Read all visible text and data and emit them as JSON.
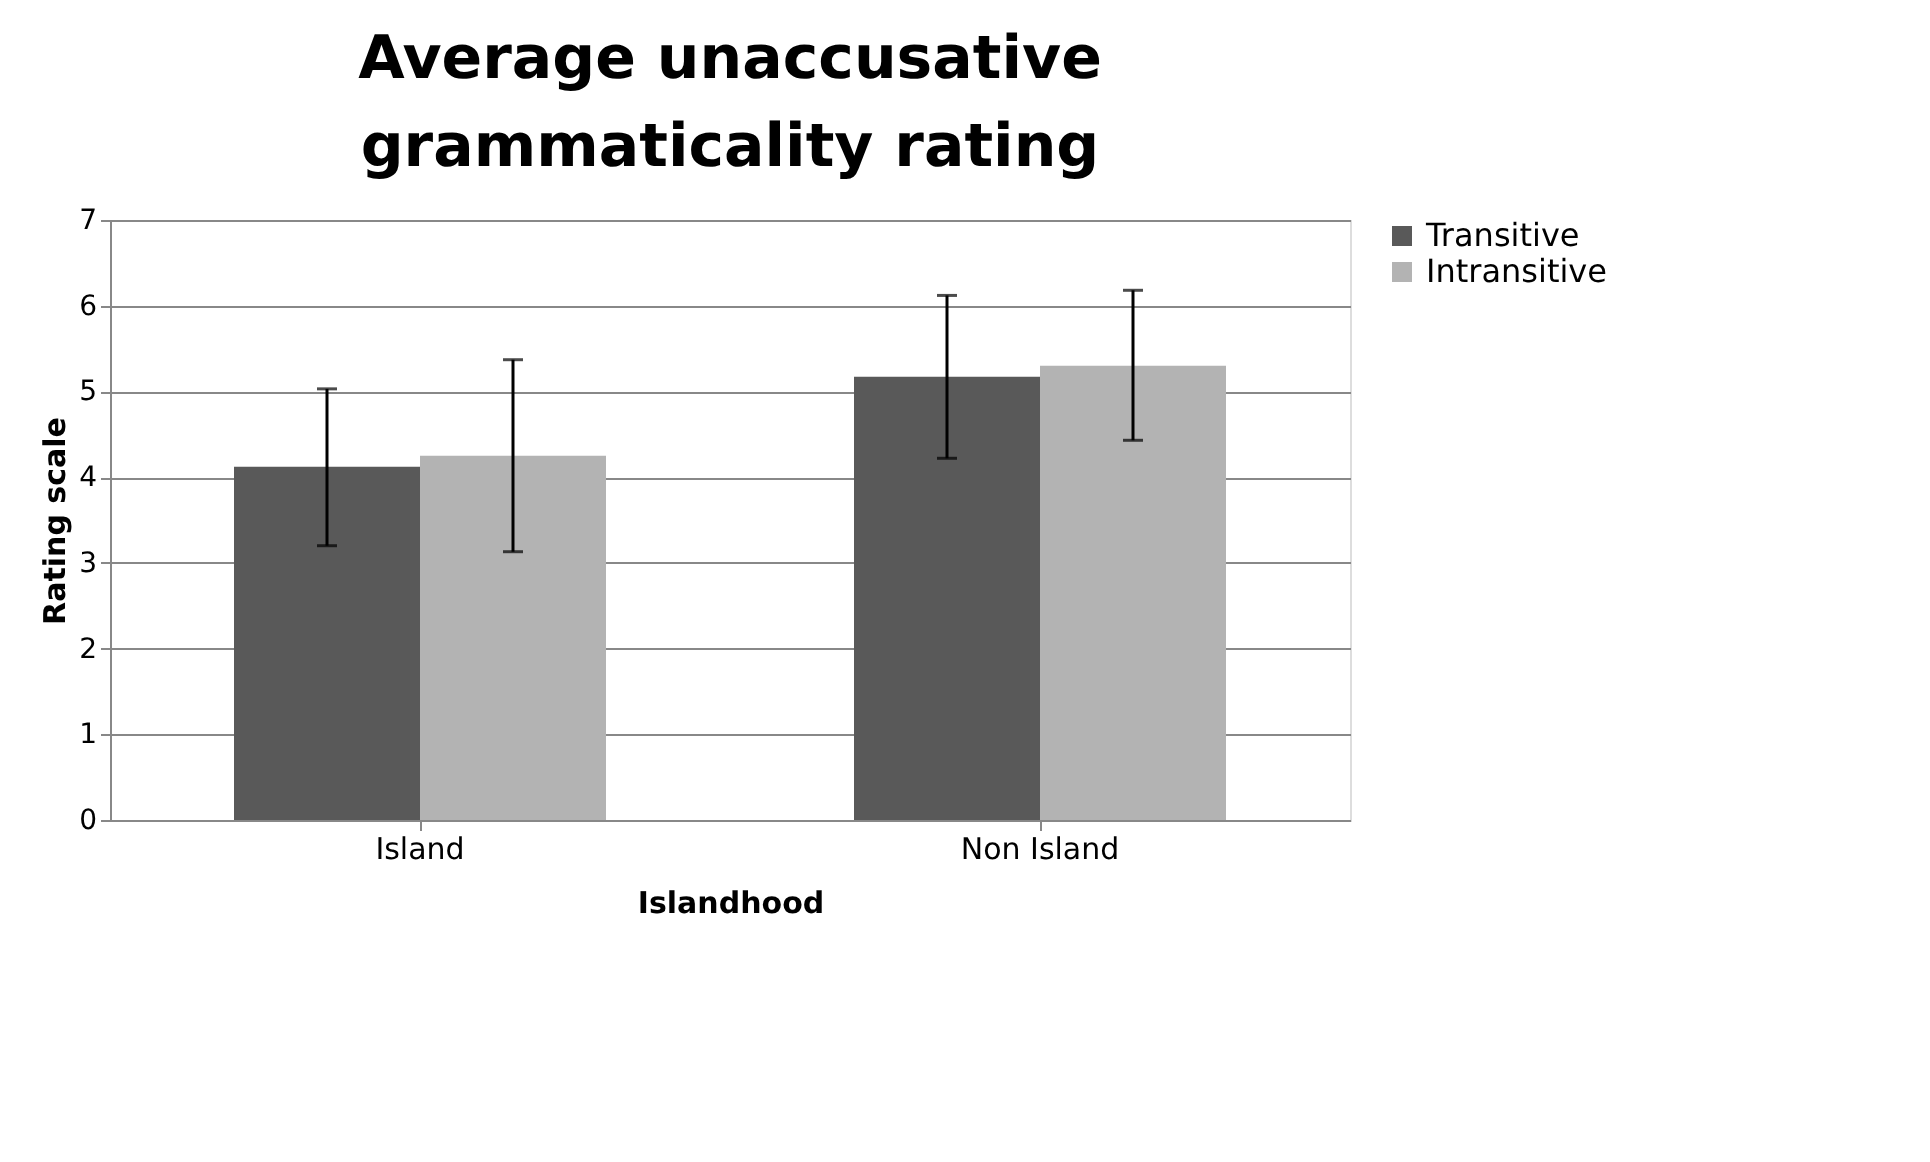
{
  "chart_data": {
    "type": "bar",
    "title": "Average unaccusative grammaticality rating",
    "xlabel": "Islandhood",
    "ylabel": "Rating scale",
    "categories": [
      "Island",
      "Non Island"
    ],
    "series": [
      {
        "name": "Transitive",
        "color": "#595959",
        "values": [
          4.12,
          5.17
        ],
        "errors": [
          [
            3.2,
            5.03
          ],
          [
            4.22,
            6.12
          ]
        ]
      },
      {
        "name": "Intransitive",
        "color": "#b3b3b3",
        "values": [
          4.25,
          5.3
        ],
        "errors": [
          [
            3.13,
            5.37
          ],
          [
            4.43,
            6.18
          ]
        ]
      }
    ],
    "ylim": [
      0,
      7
    ],
    "yticks": [
      0,
      1,
      2,
      3,
      4,
      5,
      6,
      7
    ],
    "grid": "y",
    "legend": "right"
  }
}
